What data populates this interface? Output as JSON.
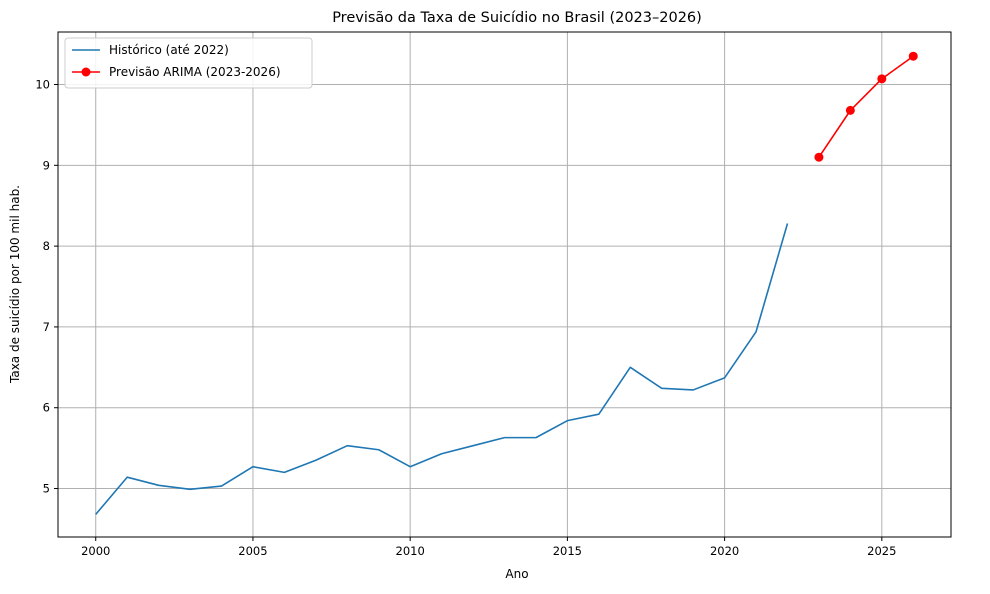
{
  "chart_data": {
    "type": "line",
    "title": "Previsão da Taxa de Suicídio no Brasil (2023–2026)",
    "xlabel": "Ano",
    "ylabel": "Taxa de suicídio por 100 mil hab.",
    "xlim": [
      1998.8,
      2027.2
    ],
    "ylim": [
      4.4,
      10.65
    ],
    "xticks": [
      2000,
      2005,
      2010,
      2015,
      2020,
      2025
    ],
    "yticks": [
      5,
      6,
      7,
      8,
      9,
      10
    ],
    "grid": true,
    "legend_position": "upper-left",
    "series": [
      {
        "name": "Histórico (até 2022)",
        "color": "#1f77b4",
        "marker": "none",
        "x": [
          2000,
          2001,
          2002,
          2003,
          2004,
          2005,
          2006,
          2007,
          2008,
          2009,
          2010,
          2011,
          2012,
          2013,
          2014,
          2015,
          2016,
          2017,
          2018,
          2019,
          2020,
          2021,
          2022
        ],
        "y": [
          4.68,
          5.14,
          5.04,
          4.99,
          5.03,
          5.27,
          5.2,
          5.35,
          5.53,
          5.48,
          5.27,
          5.43,
          5.53,
          5.63,
          5.63,
          5.84,
          5.92,
          6.5,
          6.24,
          6.22,
          6.37,
          6.94,
          8.28
        ]
      },
      {
        "name": "Previsão ARIMA (2023-2026)",
        "color": "#ff0000",
        "marker": "circle",
        "x": [
          2023,
          2024,
          2025,
          2026
        ],
        "y": [
          9.1,
          9.68,
          10.07,
          10.35
        ]
      }
    ]
  }
}
